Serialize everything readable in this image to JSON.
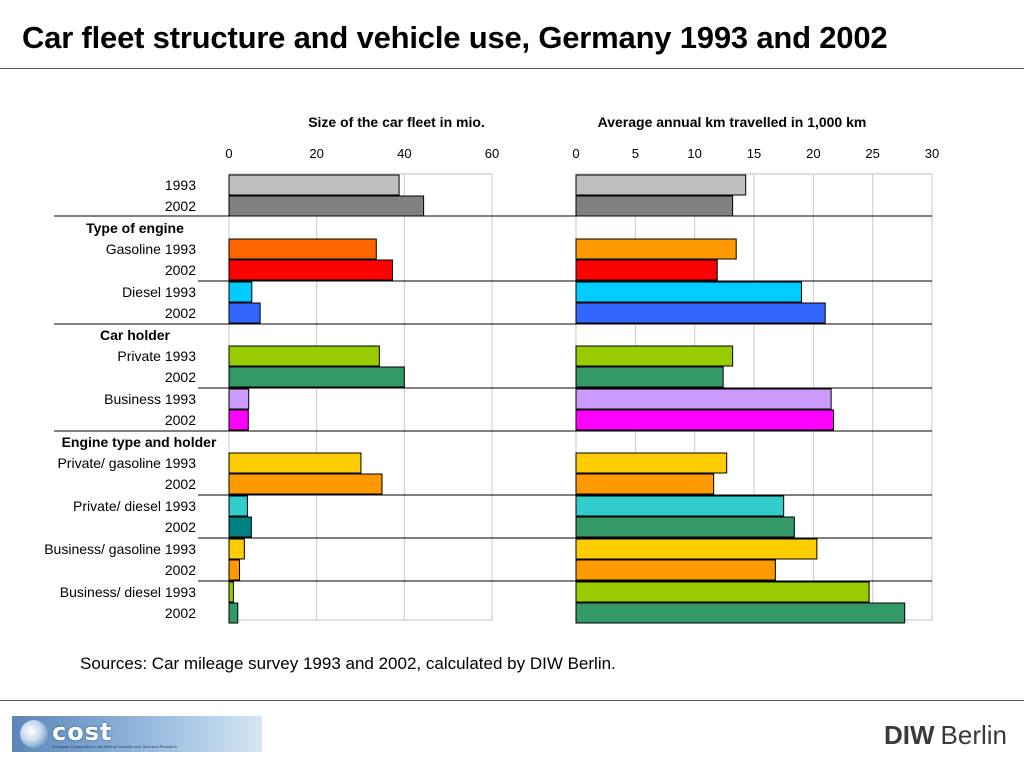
{
  "title": "Car fleet structure and vehicle use, Germany 1993 and 2002",
  "source": "Sources: Car mileage survey 1993 and 2002, calculated by DIW Berlin.",
  "footer": {
    "cost_logo_text": "cost",
    "cost_logo_subtext": "European Cooperation in the field of Scientific and Technical Research",
    "diw_bold": "DIW",
    "diw_normal": "Berlin"
  },
  "chart_data": {
    "type": "bar",
    "orientation": "horizontal",
    "group_headers": [
      {
        "label": "Type of engine",
        "before_row": 2
      },
      {
        "label": "Car holder",
        "before_row": 6
      },
      {
        "label": "Engine type and holder",
        "before_row": 10
      }
    ],
    "rows": [
      {
        "label": "1993",
        "color": "#bfbfbf"
      },
      {
        "label": "2002",
        "color": "#808080"
      },
      {
        "label": "Gasoline 1993",
        "color": "#ff6600"
      },
      {
        "label": "2002",
        "color": "#ff0000"
      },
      {
        "label": "Diesel 1993",
        "color": "#00ccff"
      },
      {
        "label": "2002",
        "color": "#3366ff"
      },
      {
        "label": "Private 1993",
        "color": "#99cc00"
      },
      {
        "label": "2002",
        "color": "#339966"
      },
      {
        "label": "Business 1993",
        "color": "#cc99ff"
      },
      {
        "label": "2002",
        "color": "#ff00ff"
      },
      {
        "label": "Private/ gasoline 1993",
        "color": "#ffcc00"
      },
      {
        "label": "2002",
        "color": "#ff9900"
      },
      {
        "label": "Private/ diesel 1993",
        "color": "#33cccc"
      },
      {
        "label": "2002",
        "color": "#008080"
      },
      {
        "label": "Business/ gasoline 1993",
        "color": "#ffcc00"
      },
      {
        "label": "2002",
        "color": "#ff9900"
      },
      {
        "label": "Business/ diesel 1993",
        "color": "#99cc00"
      },
      {
        "label": "2002",
        "color": "#339966"
      }
    ],
    "panels": [
      {
        "title": "Size of the car fleet in mio.",
        "xlim": [
          0,
          60
        ],
        "ticks": [
          0,
          20,
          40,
          60
        ],
        "values": [
          38.8,
          44.4,
          33.6,
          37.3,
          5.2,
          7.1,
          34.3,
          40.0,
          4.5,
          4.4,
          30.1,
          34.9,
          4.2,
          5.1,
          3.5,
          2.4,
          1.0,
          2.0
        ],
        "right_color_sample_ka": [
          14.3,
          13.2,
          13.5,
          11.9,
          19.0,
          21.0,
          13.2,
          12.4,
          21.5,
          21.7,
          12.7,
          11.6,
          17.5,
          18.4,
          20.3,
          16.8,
          24.7,
          27.7
        ]
      },
      {
        "title": "Average annual km travelled in 1,000 km",
        "xlim": [
          0,
          30
        ],
        "ticks": [
          0,
          5,
          10,
          15,
          20,
          25,
          30
        ],
        "values": [
          14.3,
          13.2,
          13.5,
          11.9,
          19.0,
          21.0,
          13.2,
          12.4,
          21.5,
          21.7,
          12.7,
          11.6,
          17.5,
          18.4,
          20.3,
          16.8,
          24.7,
          27.7
        ]
      }
    ],
    "right_panel_colors": [
      "#bfbfbf",
      "#808080",
      "#ff9900",
      "#ff0000",
      "#00ccff",
      "#3366ff",
      "#99cc00",
      "#339966",
      "#cc99ff",
      "#ff00ff",
      "#ffcc00",
      "#ff9900",
      "#33cccc",
      "#339966",
      "#ffcc00",
      "#ff9900",
      "#99cc00",
      "#339966"
    ],
    "grid": true
  }
}
